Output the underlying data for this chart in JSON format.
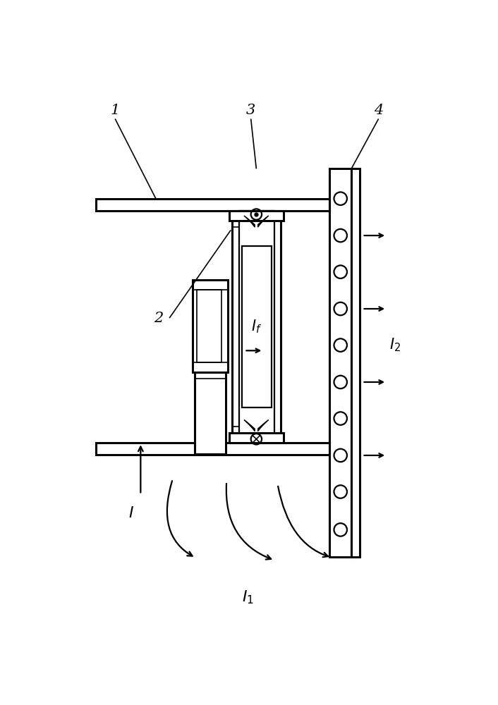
{
  "bg_color": "#ffffff",
  "line_color": "#000000",
  "labels": {
    "1": "1",
    "2": "2",
    "3": "3",
    "4": "4"
  },
  "label_If": "I_f",
  "label_I2": "I_2",
  "label_I": "I",
  "label_I1": "I_1",
  "figsize": [
    7.06,
    10.0
  ],
  "dpi": 100
}
